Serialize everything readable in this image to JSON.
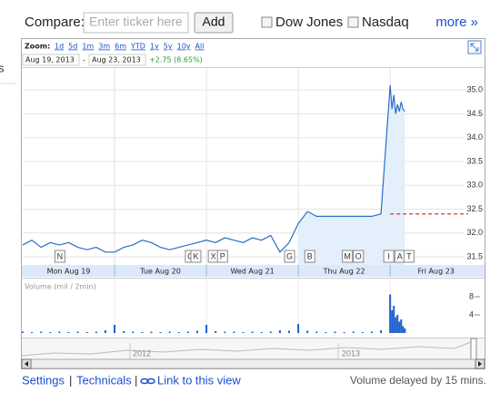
{
  "side_fragment": "s",
  "top_bar": {
    "compare_label": "Compare:",
    "input_placeholder": "Enter ticker here",
    "add_button": "Add",
    "checkboxes": [
      "Dow Jones",
      "Nasdaq"
    ],
    "more_link": "more »"
  },
  "zoom": {
    "label": "Zoom:",
    "options": [
      "1d",
      "5d",
      "1m",
      "3m",
      "6m",
      "YTD",
      "1y",
      "5y",
      "10y",
      "All"
    ]
  },
  "range": {
    "start": "Aug 19, 2013",
    "separator": "-",
    "end": "Aug 23, 2013",
    "change": "+2.75 (8.65%)"
  },
  "chart_data": {
    "type": "line",
    "x": [
      19.0,
      19.1,
      19.2,
      19.3,
      19.4,
      19.5,
      19.6,
      19.7,
      19.8,
      19.9,
      20.0,
      20.1,
      20.2,
      20.3,
      20.4,
      20.5,
      20.6,
      20.7,
      20.8,
      20.9,
      21.0,
      21.1,
      21.2,
      21.3,
      21.4,
      21.5,
      21.6,
      21.7,
      21.8,
      21.9,
      22.0,
      22.1,
      22.2,
      22.3,
      22.4,
      22.5,
      22.6,
      22.7,
      22.8,
      22.9,
      23.0,
      23.02,
      23.04,
      23.06,
      23.08,
      23.1,
      23.12,
      23.14,
      23.16
    ],
    "series": [
      {
        "color": "#2a6fc9",
        "values": [
          31.75,
          31.85,
          31.7,
          31.8,
          31.75,
          31.8,
          31.7,
          31.65,
          31.7,
          31.6,
          31.6,
          31.7,
          31.75,
          31.85,
          31.8,
          31.7,
          31.65,
          31.7,
          31.75,
          31.8,
          31.85,
          31.8,
          31.9,
          31.85,
          31.8,
          31.9,
          31.85,
          31.95,
          31.6,
          31.8,
          32.2,
          32.45,
          32.35,
          32.35,
          32.35,
          32.35,
          32.35,
          32.35,
          32.35,
          32.4,
          35.1,
          34.6,
          34.9,
          34.5,
          34.7,
          34.55,
          34.75,
          34.6,
          34.55
        ]
      }
    ],
    "previous_close": 32.4,
    "xlim": [
      19,
      23.8
    ],
    "xticks": [
      {
        "value": 19.5,
        "label": "Mon Aug 19"
      },
      {
        "value": 20.5,
        "label": "Tue Aug 20"
      },
      {
        "value": 21.5,
        "label": "Wed Aug 21"
      },
      {
        "value": 22.5,
        "label": "Thu Aug 22"
      },
      {
        "value": 23.5,
        "label": "Fri Aug 23"
      }
    ],
    "xgrid": [
      20,
      21,
      22,
      23
    ],
    "ylim": [
      31.33,
      35.46
    ],
    "yticks": [
      31.5,
      {
        "value": 32,
        "label": "32.0"
      },
      32.5,
      {
        "value": 33,
        "label": "33.0"
      },
      33.5,
      {
        "value": 34,
        "label": "34.0"
      },
      34.5,
      {
        "value": 35,
        "label": "35.0"
      }
    ],
    "grid": true,
    "flags": [
      {
        "label": "N",
        "x": 19.4
      },
      {
        "label": "C",
        "x": 20.82
      },
      {
        "label": "K",
        "x": 20.88
      },
      {
        "label": "X",
        "x": 21.07
      },
      {
        "label": "P",
        "x": 21.17
      },
      {
        "label": "G",
        "x": 21.9
      },
      {
        "label": "B",
        "x": 22.12
      },
      {
        "label": "M",
        "x": 22.53
      },
      {
        "label": "O",
        "x": 22.65
      },
      {
        "label": "I",
        "x": 22.98
      },
      {
        "label": "A",
        "x": 23.1
      },
      {
        "label": "T",
        "x": 23.2
      }
    ],
    "volume": {
      "label": "Volume (mil / 2min)",
      "color": "#1a5fd0",
      "ylim": [
        0,
        11.4
      ],
      "yticks": [
        4,
        8
      ],
      "values": [
        0.3,
        0.2,
        0.3,
        0.2,
        0.3,
        0.2,
        0.3,
        0.2,
        0.3,
        0.6,
        1.8,
        0.4,
        0.3,
        0.2,
        0.3,
        0.2,
        0.3,
        0.2,
        0.3,
        0.5,
        1.8,
        0.4,
        0.3,
        0.3,
        0.2,
        0.3,
        0.2,
        0.3,
        0.6,
        0.5,
        2.0,
        0.5,
        0.3,
        0.2,
        0.3,
        0.2,
        0.3,
        0.2,
        0.3,
        0.6,
        8.5,
        5,
        6,
        3.5,
        4,
        2.5,
        3,
        1.5,
        1
      ]
    }
  },
  "navigator": {
    "years": [
      "2012",
      "2013"
    ]
  },
  "footer": {
    "links": [
      "Settings",
      "Technicals",
      "Link to this view"
    ],
    "separator": "|",
    "note": "Volume delayed by 15 mins."
  }
}
